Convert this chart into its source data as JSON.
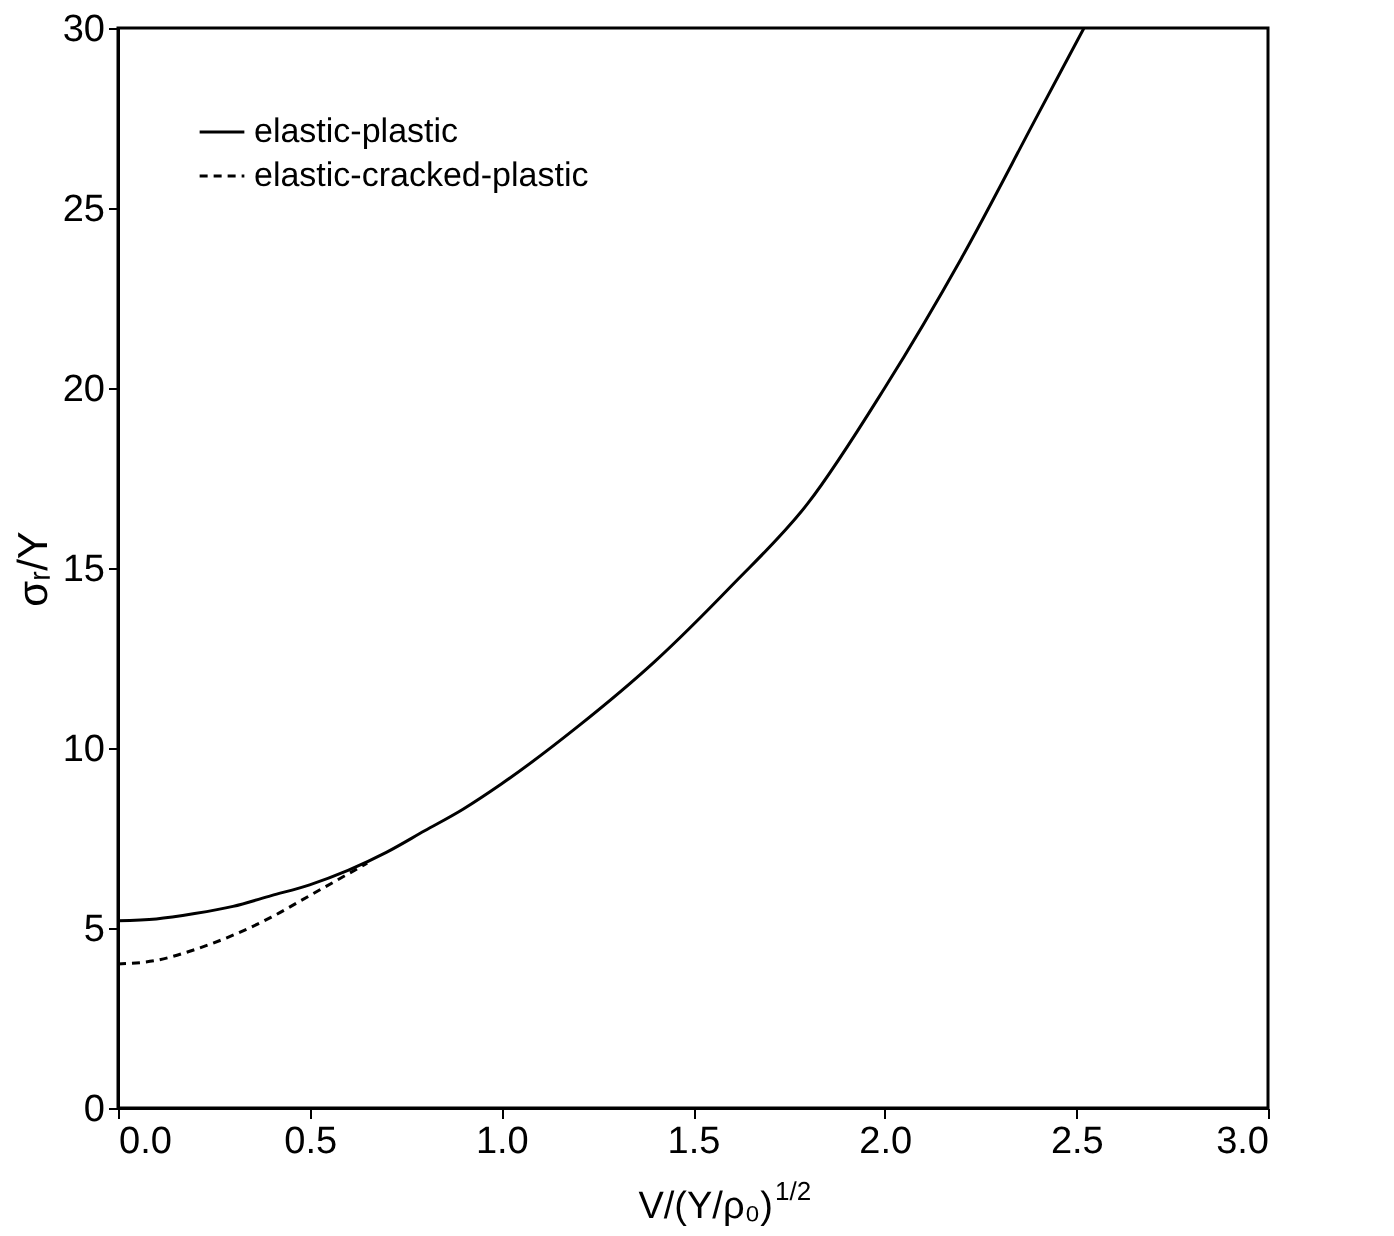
{
  "chart_data": {
    "type": "line",
    "xlabel": "V/(Y/ρ₀)$^{1/2}$",
    "ylabel": "σᵣ/Y",
    "xlim": [
      0,
      3
    ],
    "ylim": [
      0,
      30
    ],
    "xticks": [
      {
        "value": 0,
        "label": "0.0"
      },
      {
        "value": 0.5,
        "label": "0.5"
      },
      {
        "value": 1,
        "label": "1.0"
      },
      {
        "value": 1.5,
        "label": "1.5"
      },
      {
        "value": 2,
        "label": "2.0"
      },
      {
        "value": 2.5,
        "label": "2.5"
      },
      {
        "value": 3,
        "label": "3.0"
      }
    ],
    "yticks": [
      0,
      5,
      10,
      15,
      20,
      25,
      30
    ],
    "grid": false,
    "legend": "top left",
    "marker": "none",
    "series": [
      {
        "name": "elastic-plastic",
        "color": "#000000",
        "line_style": "solid",
        "x": [
          0,
          0.1,
          0.2,
          0.3,
          0.4,
          0.5,
          0.6,
          0.7,
          0.8,
          0.9,
          1.0,
          1.2,
          1.4,
          1.6,
          1.8,
          2.0,
          2.2,
          2.4,
          2.52
        ],
        "values": [
          5.2,
          5.25,
          5.4,
          5.6,
          5.9,
          6.2,
          6.6,
          7.1,
          7.7,
          8.3,
          9.0,
          10.6,
          12.4,
          14.5,
          16.8,
          20.0,
          23.6,
          27.6,
          30
        ]
      },
      {
        "name": "elastic-cracked-plastic",
        "color": "#000000",
        "line_style": "dashed",
        "x": [
          0,
          0.1,
          0.2,
          0.3,
          0.4,
          0.5,
          0.6,
          0.65
        ],
        "values": [
          4.0,
          4.1,
          4.4,
          4.8,
          5.3,
          5.9,
          6.5,
          6.8
        ]
      }
    ]
  }
}
